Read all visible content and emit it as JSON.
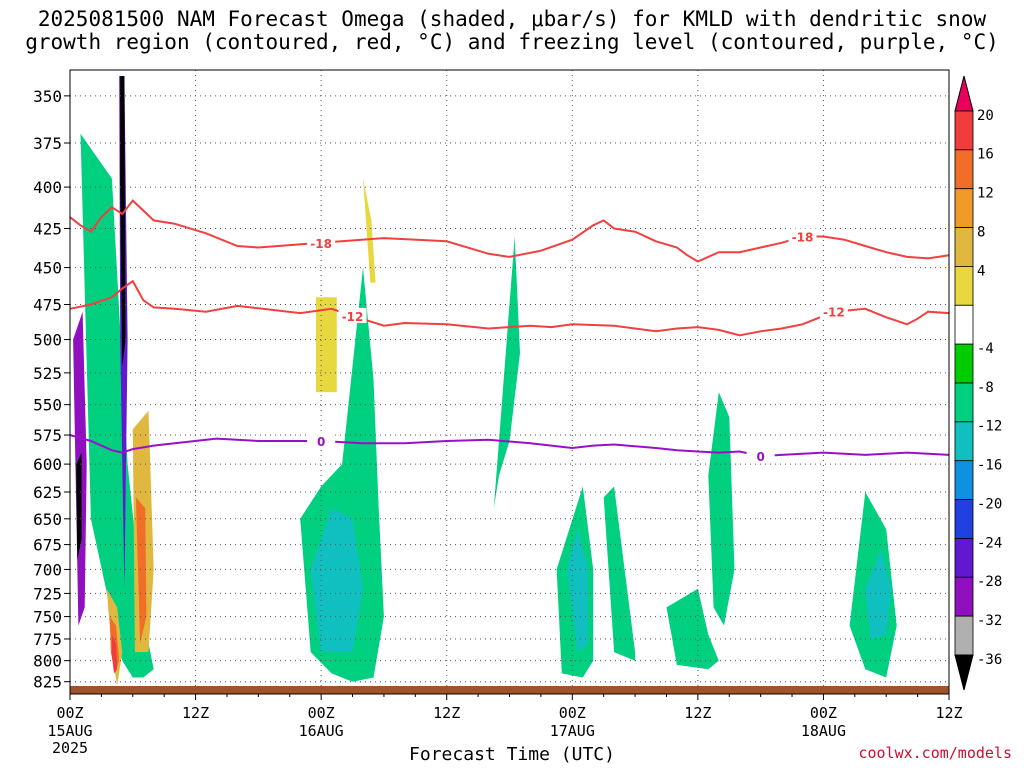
{
  "title_line1": "2025081500 NAM Forecast Omega (shaded, μbar/s) for KMLD with dendritic snow",
  "title_line2": "growth region (contoured, red, °C) and freezing level (contoured, purple, °C)",
  "watermark": "coolwx.com/models",
  "chart_data": {
    "type": "contour",
    "title": "2025081500 NAM Forecast Omega (shaded, μbar/s) for KMLD with dendritic snow growth region (contoured, red, °C) and freezing level (contoured, purple, °C)",
    "xlabel": "Forecast Time (UTC)",
    "ylabel": "",
    "x_unit": "hours since 2025-08-15 00Z",
    "xlim": [
      0,
      84
    ],
    "ylim_hPa": [
      337,
      840
    ],
    "yscale": "log",
    "y_ticks": [
      350,
      375,
      400,
      425,
      450,
      475,
      500,
      525,
      550,
      575,
      600,
      625,
      650,
      675,
      700,
      725,
      750,
      775,
      800,
      825
    ],
    "x_ticks": [
      {
        "hour": 0,
        "label": "00Z",
        "date": "15AUG",
        "year": "2025"
      },
      {
        "hour": 12,
        "label": "12Z",
        "date": "",
        "year": ""
      },
      {
        "hour": 24,
        "label": "00Z",
        "date": "16AUG",
        "year": ""
      },
      {
        "hour": 36,
        "label": "12Z",
        "date": "",
        "year": ""
      },
      {
        "hour": 48,
        "label": "00Z",
        "date": "17AUG",
        "year": ""
      },
      {
        "hour": 60,
        "label": "12Z",
        "date": "",
        "year": ""
      },
      {
        "hour": 72,
        "label": "00Z",
        "date": "18AUG",
        "year": ""
      },
      {
        "hour": 84,
        "label": "12Z",
        "date": "",
        "year": ""
      }
    ],
    "colorbar": {
      "labels": [
        "20",
        "16",
        "12",
        "8",
        "4",
        "-4",
        "-8",
        "-12",
        "-16",
        "-20",
        "-24",
        "-28",
        "-32",
        "-36"
      ],
      "colors": [
        "#e8005a",
        "#f03c3c",
        "#f06e28",
        "#f09a28",
        "#e0b840",
        "#e8d840",
        "#ffffff",
        "#00cc00",
        "#00d080",
        "#10c0c0",
        "#1090e0",
        "#2040e0",
        "#6018d0",
        "#9010c0",
        "#b0b0b0",
        "#000000"
      ]
    },
    "contours": [
      {
        "name": "-18",
        "color": "#f04040",
        "hour": [
          0,
          1,
          2,
          3,
          4,
          5,
          6,
          8,
          10,
          11,
          13,
          16,
          18,
          24,
          30,
          36,
          40,
          42,
          45,
          48,
          50,
          51,
          52,
          54,
          56,
          58,
          59,
          60,
          62,
          64,
          66,
          68,
          70,
          72,
          74,
          76,
          78,
          80,
          82,
          84
        ],
        "pressure": [
          418,
          423,
          427,
          418,
          412,
          416,
          408,
          420,
          422,
          424,
          428,
          436,
          437,
          434,
          431,
          433,
          441,
          443,
          439,
          432,
          423,
          420,
          425,
          427,
          433,
          437,
          442,
          446,
          440,
          440,
          437,
          434,
          430,
          430,
          432,
          436,
          440,
          443,
          444,
          442
        ]
      },
      {
        "name": "-12",
        "color": "#f04040",
        "hour": [
          0,
          2,
          4,
          5,
          6,
          7,
          8,
          10,
          13,
          16,
          22,
          25,
          27,
          30,
          32,
          36,
          40,
          44,
          46,
          48,
          52,
          56,
          58,
          60,
          62,
          64,
          66,
          68,
          70,
          72,
          73,
          76,
          78,
          80,
          81,
          82,
          84
        ],
        "pressure": [
          478,
          475,
          470,
          464,
          459,
          472,
          477,
          478,
          480,
          476,
          481,
          478,
          483,
          490,
          488,
          489,
          492,
          490,
          491,
          489,
          490,
          494,
          492,
          491,
          493,
          497,
          494,
          492,
          489,
          483,
          480,
          478,
          484,
          489,
          485,
          480,
          481
        ]
      },
      {
        "name": "0",
        "color": "#9a10c8",
        "hour": [
          0,
          2,
          4,
          5,
          6,
          8,
          10,
          14,
          18,
          24,
          28,
          32,
          36,
          40,
          44,
          48,
          50,
          52,
          56,
          58,
          60,
          62,
          64,
          66,
          68,
          72,
          76,
          80,
          84
        ],
        "pressure": [
          575,
          580,
          588,
          590,
          587,
          584,
          582,
          578,
          580,
          580,
          582,
          582,
          580,
          579,
          582,
          586,
          584,
          583,
          586,
          588,
          589,
          590,
          589,
          593,
          592,
          590,
          592,
          590,
          592
        ]
      }
    ],
    "regions": [
      {
        "label": "-8",
        "x": [
          1,
          4,
          5.5,
          7,
          8,
          7,
          6,
          5,
          4,
          2,
          1
        ],
        "y_hPa": [
          370,
          395,
          600,
          750,
          810,
          820,
          820,
          800,
          750,
          650,
          370
        ]
      },
      {
        "label": "-8",
        "x": [
          22,
          24,
          26,
          28,
          29,
          29.5,
          30,
          29,
          27,
          25,
          23,
          22
        ],
        "y_hPa": [
          650,
          620,
          600,
          450,
          530,
          640,
          750,
          820,
          825,
          815,
          790,
          650
        ]
      },
      {
        "label": "-8",
        "x": [
          40.5,
          42.5,
          43,
          42,
          41,
          40.5
        ],
        "y_hPa": [
          640,
          430,
          510,
          580,
          610,
          640
        ]
      },
      {
        "label": "-8",
        "x": [
          46.5,
          49,
          50,
          50,
          49,
          47,
          46.5
        ],
        "y_hPa": [
          700,
          620,
          700,
          800,
          820,
          815,
          700
        ]
      },
      {
        "label": "-8",
        "x": [
          51,
          52,
          53,
          54,
          54,
          52,
          51
        ],
        "y_hPa": [
          630,
          620,
          700,
          790,
          800,
          790,
          630
        ]
      },
      {
        "label": "-8",
        "x": [
          57,
          60,
          61,
          62,
          61,
          58,
          57
        ],
        "y_hPa": [
          740,
          720,
          770,
          800,
          810,
          805,
          740
        ]
      },
      {
        "label": "-8",
        "x": [
          61,
          62,
          63,
          63.5,
          62.5,
          61.5,
          61
        ],
        "y_hPa": [
          610,
          540,
          560,
          700,
          760,
          740,
          610
        ]
      },
      {
        "label": "-8",
        "x": [
          74.5,
          76,
          78,
          79,
          78,
          76,
          74.5
        ],
        "y_hPa": [
          760,
          625,
          660,
          760,
          820,
          810,
          760
        ]
      },
      {
        "label": "-12",
        "x": [
          23,
          25,
          27,
          28,
          27,
          24,
          23
        ],
        "y_hPa": [
          700,
          640,
          650,
          720,
          790,
          790,
          700
        ]
      },
      {
        "label": "-12",
        "x": [
          47.5,
          48.5,
          49.5,
          49.5,
          48.5,
          47.5
        ],
        "y_hPa": [
          700,
          660,
          700,
          780,
          790,
          700
        ]
      },
      {
        "label": "-12",
        "x": [
          76,
          77.5,
          78.5,
          78,
          76.5,
          76
        ],
        "y_hPa": [
          720,
          680,
          720,
          770,
          775,
          720
        ]
      },
      {
        "label": "4",
        "x": [
          23.5,
          25.5,
          25.5,
          23.5
        ],
        "y_hPa": [
          470,
          470,
          540,
          540
        ]
      },
      {
        "label": "4",
        "x": [
          28,
          28.8,
          29.2,
          28.7,
          28
        ],
        "y_hPa": [
          395,
          420,
          460,
          460,
          395
        ]
      },
      {
        "label": "8",
        "x": [
          3.5,
          4.5,
          5,
          4.5,
          4
        ],
        "y_hPa": [
          720,
          740,
          790,
          830,
          790
        ]
      },
      {
        "label": "16",
        "x": [
          3.8,
          4.4,
          4.7,
          4.3,
          3.9
        ],
        "y_hPa": [
          750,
          760,
          800,
          815,
          790
        ]
      },
      {
        "label": "20",
        "x": [
          4,
          4.4,
          4.5,
          4.2,
          4
        ],
        "y_hPa": [
          770,
          780,
          810,
          815,
          795
        ]
      },
      {
        "label": "8",
        "x": [
          6,
          7.5,
          8,
          7.5,
          6.2,
          6
        ],
        "y_hPa": [
          570,
          555,
          700,
          790,
          790,
          570
        ]
      },
      {
        "label": "16",
        "x": [
          6.3,
          7.2,
          7.3,
          6.7,
          6.3
        ],
        "y_hPa": [
          630,
          640,
          750,
          780,
          630
        ]
      },
      {
        "label": "-28",
        "x": [
          0.3,
          1.2,
          1.6,
          1.4,
          0.8,
          0.3
        ],
        "y_hPa": [
          500,
          480,
          600,
          740,
          760,
          500
        ]
      },
      {
        "label": "-36",
        "x": [
          0.6,
          1.1,
          1.1,
          0.7
        ],
        "y_hPa": [
          600,
          590,
          670,
          690
        ]
      },
      {
        "label": "-24",
        "x": [
          4.7,
          5.2,
          5.5,
          5.2,
          4.8
        ],
        "y_hPa": [
          340,
          340,
          500,
          720,
          500
        ]
      },
      {
        "label": "-36",
        "x": [
          4.8,
          5.2,
          5.3,
          5.0,
          4.8
        ],
        "y_hPa": [
          340,
          340,
          500,
          520,
          400
        ]
      }
    ],
    "legend": "right colorbar"
  }
}
